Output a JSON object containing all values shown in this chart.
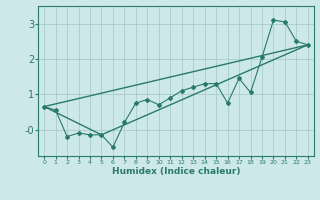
{
  "xlabel": "Humidex (Indice chaleur)",
  "bg_color": "#cce8e8",
  "grid_color": "#aacccc",
  "line_color": "#2a7a6a",
  "xlim": [
    -0.5,
    23.5
  ],
  "ylim": [
    -0.75,
    3.5
  ],
  "xticks": [
    0,
    1,
    2,
    3,
    4,
    5,
    6,
    7,
    8,
    9,
    10,
    11,
    12,
    13,
    14,
    15,
    16,
    17,
    18,
    19,
    20,
    21,
    22,
    23
  ],
  "yticks": [
    0,
    1,
    2,
    3
  ],
  "ytick_labels": [
    "-0",
    "1",
    "2",
    "3"
  ],
  "zigzag_x": [
    0,
    1,
    2,
    3,
    4,
    5,
    6,
    7,
    8,
    9,
    10,
    11,
    12,
    13,
    14,
    15,
    16,
    17,
    18,
    19,
    20,
    21,
    22,
    23
  ],
  "zigzag_y": [
    0.65,
    0.55,
    -0.2,
    -0.1,
    -0.15,
    -0.15,
    -0.5,
    0.2,
    0.75,
    0.85,
    0.7,
    0.9,
    1.1,
    1.2,
    1.3,
    1.3,
    0.75,
    1.45,
    1.05,
    2.05,
    3.1,
    3.05,
    2.5,
    2.4
  ],
  "line1_x": [
    0,
    23
  ],
  "line1_y": [
    0.65,
    2.4
  ],
  "line2_x": [
    0,
    5,
    23
  ],
  "line2_y": [
    0.65,
    -0.15,
    2.4
  ]
}
